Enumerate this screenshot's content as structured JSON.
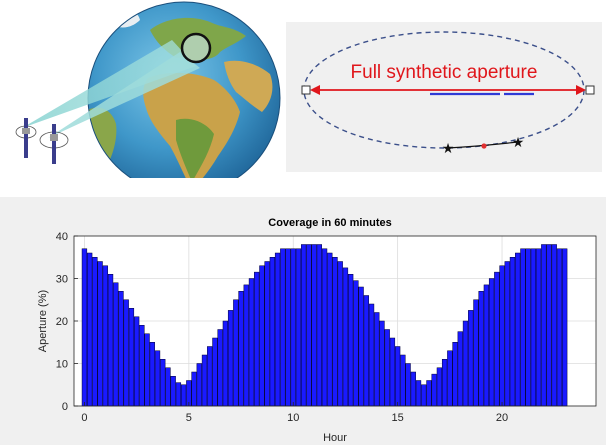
{
  "ellipse_diagram": {
    "label": "Full synthetic aperture",
    "arrow_color": "#e0161b",
    "label_color": "#e0161b",
    "segment_color": "#2f3bd6"
  },
  "colors": {
    "bar_fill": "#1a1aff",
    "bar_edge": "#000033",
    "axes_bg": "#ffffff",
    "figure_bg": "#f0f0f0"
  },
  "chart_data": {
    "type": "bar",
    "title": "Coverage in 60 minutes",
    "xlabel": "Hour",
    "ylabel": "Aperture (%)",
    "xlim": [
      -0.5,
      24.5
    ],
    "ylim": [
      0,
      40
    ],
    "xticks": [
      0,
      5,
      10,
      15,
      20
    ],
    "yticks": [
      0,
      10,
      20,
      30,
      40
    ],
    "grid": true,
    "bar_width": 0.25,
    "x_start": 0,
    "x_step": 0.25,
    "values": [
      37,
      36,
      35,
      34,
      33,
      31,
      29,
      27,
      25,
      23,
      21,
      19,
      17,
      15,
      13,
      11,
      9,
      7,
      5.5,
      5,
      6,
      8,
      10,
      12,
      14,
      16,
      18,
      20,
      22.5,
      25,
      27,
      28.5,
      30,
      31.5,
      33,
      34,
      35,
      36,
      37,
      37,
      37,
      37,
      38,
      38,
      38,
      38,
      37,
      36,
      35,
      34,
      32.5,
      31,
      29.5,
      28,
      26,
      24,
      22,
      20,
      18,
      16,
      14,
      12,
      10,
      8,
      6,
      5,
      6,
      7.5,
      9,
      11,
      13,
      15,
      17.5,
      20,
      22.5,
      25,
      27,
      28.5,
      30,
      31.5,
      33,
      34,
      35,
      36,
      37,
      37,
      37,
      37,
      38,
      38,
      38,
      37,
      37
    ]
  }
}
